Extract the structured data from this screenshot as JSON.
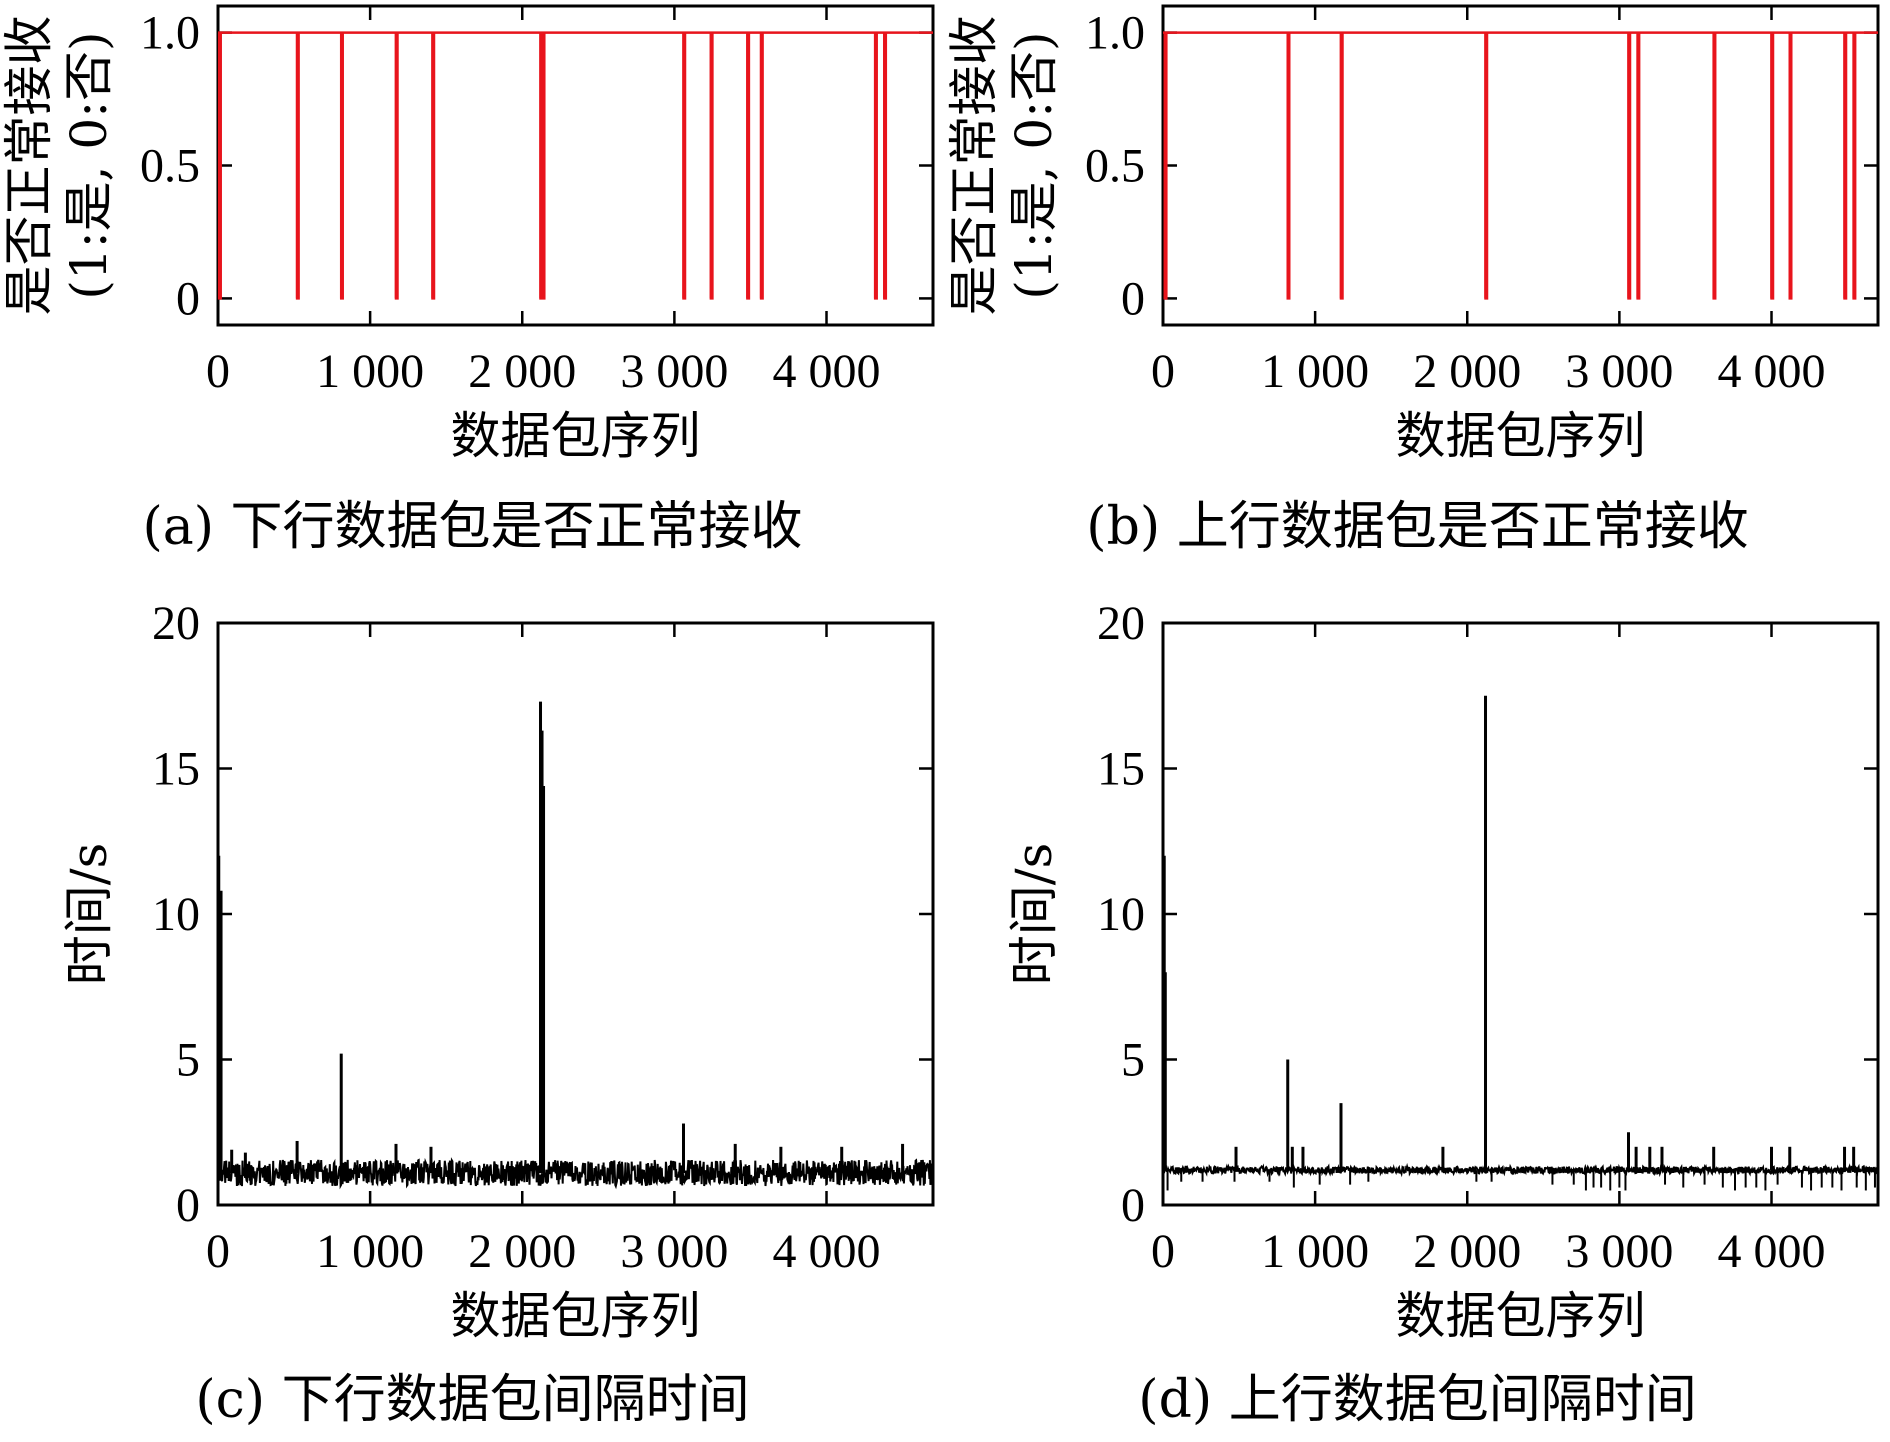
{
  "chart_data": [
    {
      "panel": "a",
      "type": "line",
      "caption": "(a) 下行数据包是否正常接收",
      "xlabel": "数据包序列",
      "ylabel_line1": "是否正常接收",
      "ylabel_line2": "(1:是, 0:否)",
      "xlim": [
        0,
        4700
      ],
      "ylim": [
        -0.1,
        1.1
      ],
      "xticks": [
        0,
        1000,
        2000,
        3000,
        4000
      ],
      "xtick_labels": [
        "0",
        "1 000",
        "2 000",
        "3 000",
        "4 000"
      ],
      "yticks": [
        0,
        0.5,
        1.0
      ],
      "ytick_labels": [
        "0",
        "0.5",
        "1.0"
      ],
      "series": [
        {
          "color": "#e8141c",
          "baseline": 1,
          "drops_to": 0,
          "drop_x": [
            8,
            520,
            810,
            1170,
            1410,
            2120,
            2135,
            3060,
            3240,
            3480,
            3570,
            4320,
            4380
          ]
        }
      ]
    },
    {
      "panel": "b",
      "type": "line",
      "caption": "(b) 上行数据包是否正常接收",
      "xlabel": "数据包序列",
      "ylabel_line1": "是否正常接收",
      "ylabel_line2": "(1:是, 0:否)",
      "xlim": [
        0,
        4700
      ],
      "ylim": [
        -0.1,
        1.1
      ],
      "xticks": [
        0,
        1000,
        2000,
        3000,
        4000
      ],
      "xtick_labels": [
        "0",
        "1 000",
        "2 000",
        "3 000",
        "4 000"
      ],
      "yticks": [
        0,
        0.5,
        1.0
      ],
      "ytick_labels": [
        "0",
        "0.5",
        "1.0"
      ],
      "series": [
        {
          "color": "#e8141c",
          "baseline": 1,
          "drops_to": 0,
          "drop_x": [
            12,
            820,
            1170,
            2120,
            3060,
            3120,
            3620,
            4000,
            4120,
            4480,
            4540
          ]
        }
      ]
    },
    {
      "panel": "c",
      "type": "line",
      "caption": "(c) 下行数据包间隔时间",
      "xlabel": "数据包序列",
      "ylabel": "时间/s",
      "xlim": [
        0,
        4700
      ],
      "ylim": [
        0,
        20
      ],
      "xticks": [
        0,
        1000,
        2000,
        3000,
        4000
      ],
      "xtick_labels": [
        "0",
        "1 000",
        "2 000",
        "3 000",
        "4 000"
      ],
      "yticks": [
        0,
        5,
        10,
        15,
        20
      ],
      "ytick_labels": [
        "0",
        "5",
        "10",
        "15",
        "20"
      ],
      "series": [
        {
          "color": "#000000",
          "noise_base": 1.1,
          "noise_amplitude": 0.45,
          "spikes": [
            [
              5,
              12.0
            ],
            [
              20,
              10.8
            ],
            [
              90,
              1.9
            ],
            [
              180,
              1.8
            ],
            [
              520,
              2.2
            ],
            [
              810,
              5.2
            ],
            [
              1170,
              2.1
            ],
            [
              1400,
              2.0
            ],
            [
              2120,
              17.3
            ],
            [
              2130,
              16.3
            ],
            [
              2140,
              14.4
            ],
            [
              3060,
              2.8
            ],
            [
              3400,
              2.1
            ],
            [
              3700,
              2.0
            ],
            [
              4100,
              2.0
            ],
            [
              4500,
              2.1
            ]
          ]
        }
      ]
    },
    {
      "panel": "d",
      "type": "line",
      "caption": "(d) 上行数据包间隔时间",
      "xlabel": "数据包序列",
      "ylabel": "时间/s",
      "xlim": [
        0,
        4700
      ],
      "ylim": [
        0,
        20
      ],
      "xticks": [
        0,
        1000,
        2000,
        3000,
        4000
      ],
      "xtick_labels": [
        "0",
        "1 000",
        "2 000",
        "3 000",
        "4 000"
      ],
      "yticks": [
        0,
        5,
        10,
        15,
        20
      ],
      "ytick_labels": [
        "0",
        "5",
        "10",
        "15",
        "20"
      ],
      "series": [
        {
          "color": "#000000",
          "noise_base": 1.2,
          "noise_amplitude": 0.12,
          "spikes": [
            [
              8,
              12.0
            ],
            [
              15,
              8.0
            ],
            [
              480,
              2.0
            ],
            [
              820,
              5.0
            ],
            [
              850,
              2.0
            ],
            [
              920,
              2.0
            ],
            [
              1170,
              3.5
            ],
            [
              1840,
              2.0
            ],
            [
              2120,
              17.5
            ],
            [
              3060,
              2.5
            ],
            [
              3110,
              2.0
            ],
            [
              3200,
              2.0
            ],
            [
              3280,
              2.0
            ],
            [
              3620,
              2.0
            ],
            [
              4000,
              2.0
            ],
            [
              4120,
              2.0
            ],
            [
              4480,
              2.0
            ],
            [
              4540,
              2.0
            ]
          ],
          "dips": [
            [
              30,
              0.5
            ],
            [
              120,
              0.8
            ],
            [
              260,
              0.8
            ],
            [
              470,
              0.8
            ],
            [
              700,
              0.8
            ],
            [
              860,
              0.6
            ],
            [
              1030,
              0.7
            ],
            [
              1230,
              0.7
            ],
            [
              1350,
              0.8
            ],
            [
              2060,
              0.8
            ],
            [
              2160,
              0.8
            ],
            [
              2560,
              0.7
            ],
            [
              2700,
              0.7
            ],
            [
              2780,
              0.5
            ],
            [
              2830,
              0.6
            ],
            [
              2880,
              0.6
            ],
            [
              2940,
              0.5
            ],
            [
              3000,
              0.6
            ],
            [
              3040,
              0.5
            ],
            [
              3300,
              0.7
            ],
            [
              3420,
              0.6
            ],
            [
              3560,
              0.7
            ],
            [
              3680,
              0.6
            ],
            [
              3760,
              0.5
            ],
            [
              3830,
              0.6
            ],
            [
              3900,
              0.6
            ],
            [
              3960,
              0.5
            ],
            [
              4040,
              0.7
            ],
            [
              4200,
              0.6
            ],
            [
              4260,
              0.5
            ],
            [
              4330,
              0.6
            ],
            [
              4400,
              0.6
            ],
            [
              4460,
              0.5
            ],
            [
              4560,
              0.6
            ],
            [
              4620,
              0.5
            ],
            [
              4680,
              0.6
            ]
          ]
        }
      ]
    }
  ]
}
